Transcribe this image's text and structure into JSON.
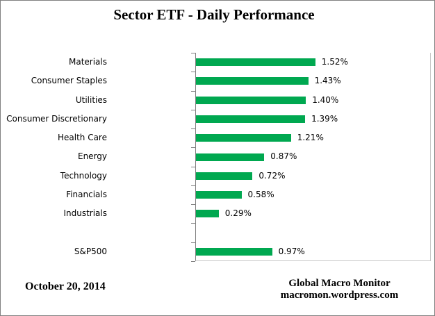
{
  "title": "Sector ETF - Daily Performance",
  "footer": {
    "date": "October 20, 2014",
    "source_name": "Global Macro Monitor",
    "source_url": "macromon.wordpress.com"
  },
  "chart_data": {
    "type": "bar",
    "orientation": "horizontal",
    "title": "Sector ETF - Daily Performance",
    "categories": [
      "Materials",
      "Consumer Staples",
      "Utilities",
      "Consumer Discretionary",
      "Health Care",
      "Energy",
      "Technology",
      "Financials",
      "Industrials",
      "S&P500"
    ],
    "values": [
      1.52,
      1.43,
      1.4,
      1.39,
      1.21,
      0.87,
      0.72,
      0.58,
      0.29,
      0.97
    ],
    "value_labels": [
      "1.52%",
      "1.43%",
      "1.40%",
      "1.39%",
      "1.21%",
      "0.87%",
      "0.72%",
      "0.58%",
      "0.29%",
      "0.97%"
    ],
    "gap_before_category": "S&P500",
    "xlabel": "",
    "ylabel": "",
    "xlim": [
      0,
      3.0
    ],
    "grid": false,
    "legend": false,
    "bar_color": "#00A850",
    "axis_color": "#808080",
    "plot_border_color": "#C9C9C9",
    "text_color": "#000000"
  }
}
